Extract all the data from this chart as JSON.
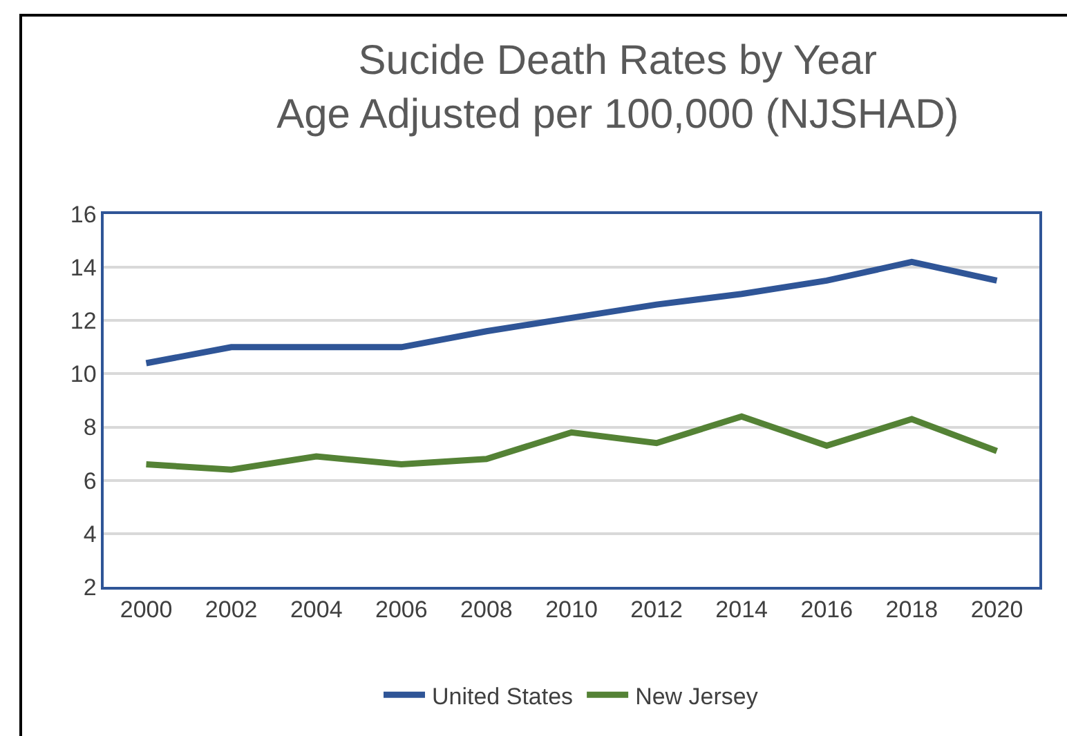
{
  "chart_data": {
    "type": "line",
    "title": "Sucide Death Rates by Year\nAge Adjusted per 100,000 (NJSHAD)",
    "categories": [
      "2000",
      "2002",
      "2004",
      "2006",
      "2008",
      "2010",
      "2012",
      "2014",
      "2016",
      "2018",
      "2020"
    ],
    "series": [
      {
        "name": "United States",
        "color": "#2f5597",
        "values": [
          10.4,
          11.0,
          11.0,
          11.0,
          11.6,
          12.1,
          12.6,
          13.0,
          13.5,
          14.2,
          13.5
        ]
      },
      {
        "name": "New Jersey",
        "color": "#548235",
        "values": [
          6.6,
          6.4,
          6.9,
          6.6,
          6.8,
          7.8,
          7.4,
          8.4,
          7.3,
          8.3,
          7.1
        ]
      }
    ],
    "ylim": [
      2,
      16
    ],
    "yticks": [
      2,
      4,
      6,
      8,
      10,
      12,
      14,
      16
    ],
    "grid": "y",
    "legend": "bottom",
    "marker": "none",
    "line_style": "solid"
  }
}
